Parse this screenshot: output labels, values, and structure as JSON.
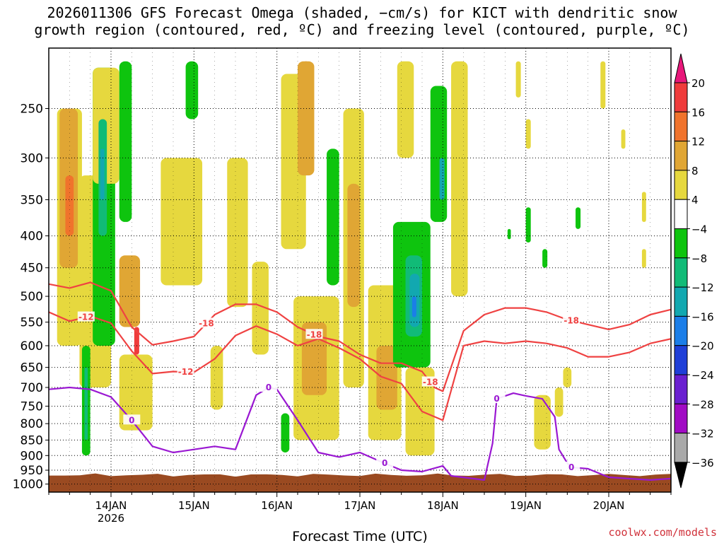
{
  "chart_data": {
    "type": "heatmap",
    "title_line1": "2026011306 GFS Forecast Omega (shaded, −cm/s) for KICT with dendritic snow",
    "title_line2": "growth region (contoured, red, ºC) and freezing level (contoured, purple, ºC)",
    "xlabel": "Forecast Time (UTC)",
    "ylabel": "",
    "x_ticks": [
      {
        "label": "14JAN",
        "sub": "2026",
        "day": 14
      },
      {
        "label": "15JAN",
        "sub": "",
        "day": 15
      },
      {
        "label": "16JAN",
        "sub": "",
        "day": 16
      },
      {
        "label": "17JAN",
        "sub": "",
        "day": 17
      },
      {
        "label": "18JAN",
        "sub": "",
        "day": 18
      },
      {
        "label": "19JAN",
        "sub": "",
        "day": 19
      },
      {
        "label": "20JAN",
        "sub": "",
        "day": 20
      }
    ],
    "xlim_days": [
      13.25,
      20.75
    ],
    "y_ticks": [
      250,
      300,
      350,
      400,
      450,
      500,
      550,
      600,
      650,
      700,
      750,
      800,
      850,
      900,
      950,
      1000
    ],
    "ylim_hpa": [
      200,
      1030
    ],
    "y_scale": "log",
    "grid": true,
    "colorbar": {
      "labels": [
        "20",
        "16",
        "12",
        "8",
        "4",
        "−4",
        "−8",
        "−12",
        "−16",
        "−20",
        "−24",
        "−28",
        "−32",
        "−36"
      ],
      "colors": [
        "#e8177a",
        "#ef3b3b",
        "#f0732c",
        "#e0a634",
        "#e6d83e",
        "#ffffff",
        "#0ec40e",
        "#11bb77",
        "#12a8b0",
        "#1b7ee8",
        "#1f3fd8",
        "#6a1fd0",
        "#a10bc4",
        "#a9a9a9",
        "#000000"
      ]
    },
    "contour_colors": {
      "dgz": "#ef4242",
      "freezing": "#9a18d2",
      "ground": "#9a4a21"
    },
    "contours": [
      {
        "name": "-12",
        "color": "dgz",
        "label_at": [
          13.7,
          14.9
        ],
        "pts": [
          [
            13.25,
            530
          ],
          [
            13.5,
            548
          ],
          [
            13.75,
            538
          ],
          [
            14.0,
            552
          ],
          [
            14.25,
            612
          ],
          [
            14.5,
            665
          ],
          [
            14.75,
            660
          ],
          [
            15.0,
            662
          ],
          [
            15.25,
            630
          ],
          [
            15.5,
            578
          ],
          [
            15.75,
            558
          ],
          [
            16.0,
            575
          ],
          [
            16.25,
            600
          ],
          [
            16.5,
            585
          ],
          [
            16.75,
            605
          ],
          [
            17.0,
            630
          ],
          [
            17.25,
            672
          ],
          [
            17.5,
            690
          ],
          [
            17.75,
            765
          ],
          [
            18.0,
            790
          ],
          [
            18.25,
            600
          ],
          [
            18.5,
            590
          ],
          [
            18.75,
            595
          ],
          [
            19.0,
            590
          ],
          [
            19.25,
            595
          ],
          [
            19.5,
            605
          ],
          [
            19.75,
            625
          ],
          [
            20.0,
            625
          ],
          [
            20.25,
            615
          ],
          [
            20.5,
            595
          ],
          [
            20.75,
            585
          ]
        ]
      },
      {
        "name": "-18",
        "color": "dgz",
        "label_at": [
          15.15,
          16.45,
          17.85,
          19.55
        ],
        "pts": [
          [
            13.25,
            478
          ],
          [
            13.5,
            485
          ],
          [
            13.75,
            475
          ],
          [
            14.0,
            490
          ],
          [
            14.25,
            560
          ],
          [
            14.5,
            598
          ],
          [
            14.75,
            590
          ],
          [
            15.0,
            580
          ],
          [
            15.25,
            535
          ],
          [
            15.5,
            515
          ],
          [
            15.75,
            515
          ],
          [
            16.0,
            530
          ],
          [
            16.25,
            560
          ],
          [
            16.5,
            580
          ],
          [
            16.75,
            590
          ],
          [
            17.0,
            620
          ],
          [
            17.25,
            640
          ],
          [
            17.5,
            640
          ],
          [
            17.75,
            660
          ],
          [
            17.9,
            700
          ],
          [
            18.0,
            710
          ],
          [
            18.25,
            568
          ],
          [
            18.5,
            535
          ],
          [
            18.75,
            522
          ],
          [
            19.0,
            522
          ],
          [
            19.25,
            530
          ],
          [
            19.5,
            545
          ],
          [
            19.75,
            555
          ],
          [
            20.0,
            565
          ],
          [
            20.25,
            555
          ],
          [
            20.5,
            535
          ],
          [
            20.75,
            525
          ]
        ]
      },
      {
        "name": "0",
        "color": "freezing",
        "label_at": [
          14.25,
          15.9,
          17.3,
          18.65,
          19.55
        ],
        "pts": [
          [
            13.25,
            705
          ],
          [
            13.5,
            700
          ],
          [
            13.75,
            705
          ],
          [
            14.0,
            725
          ],
          [
            14.25,
            790
          ],
          [
            14.5,
            870
          ],
          [
            14.75,
            890
          ],
          [
            15.0,
            880
          ],
          [
            15.25,
            870
          ],
          [
            15.5,
            880
          ],
          [
            15.75,
            720
          ],
          [
            15.9,
            700
          ],
          [
            16.0,
            705
          ],
          [
            16.25,
            790
          ],
          [
            16.5,
            890
          ],
          [
            16.75,
            905
          ],
          [
            17.0,
            890
          ],
          [
            17.25,
            920
          ],
          [
            17.5,
            950
          ],
          [
            17.75,
            955
          ],
          [
            18.0,
            935
          ],
          [
            18.1,
            970
          ],
          [
            18.5,
            985
          ],
          [
            18.6,
            860
          ],
          [
            18.65,
            730
          ],
          [
            18.85,
            715
          ],
          [
            19.0,
            722
          ],
          [
            19.2,
            730
          ],
          [
            19.35,
            780
          ],
          [
            19.4,
            880
          ],
          [
            19.5,
            925
          ],
          [
            19.55,
            940
          ],
          [
            19.75,
            945
          ],
          [
            20.0,
            975
          ],
          [
            20.5,
            985
          ],
          [
            20.75,
            980
          ]
        ]
      }
    ],
    "omega_regions": [
      {
        "v": 6,
        "x": [
          13.35,
          13.65
        ],
        "p": [
          250,
          600
        ]
      },
      {
        "v": 10,
        "x": [
          13.38,
          13.6
        ],
        "p": [
          250,
          450
        ]
      },
      {
        "v": 14,
        "x": [
          13.45,
          13.55
        ],
        "p": [
          320,
          400
        ]
      },
      {
        "v": 6,
        "x": [
          13.62,
          14.0
        ],
        "p": [
          320,
          700
        ]
      },
      {
        "v": -6,
        "x": [
          13.65,
          13.75
        ],
        "p": [
          600,
          900
        ]
      },
      {
        "v": -10,
        "x": [
          13.68,
          13.72
        ],
        "p": [
          650,
          850
        ]
      },
      {
        "v": -6,
        "x": [
          13.78,
          14.05
        ],
        "p": [
          215,
          600
        ]
      },
      {
        "v": 6,
        "x": [
          13.78,
          14.1
        ],
        "p": [
          215,
          330
        ]
      },
      {
        "v": -10,
        "x": [
          13.85,
          13.95
        ],
        "p": [
          260,
          400
        ]
      },
      {
        "v": -14,
        "x": [
          13.87,
          13.92
        ],
        "p": [
          290,
          350
        ]
      },
      {
        "v": -6,
        "x": [
          14.1,
          14.25
        ],
        "p": [
          210,
          380
        ]
      },
      {
        "v": 8,
        "x": [
          14.1,
          14.35
        ],
        "p": [
          430,
          560
        ]
      },
      {
        "v": 16,
        "x": [
          14.28,
          14.34
        ],
        "p": [
          560,
          620
        ]
      },
      {
        "v": 6,
        "x": [
          14.1,
          14.5
        ],
        "p": [
          620,
          820
        ]
      },
      {
        "v": -6,
        "x": [
          14.9,
          15.05
        ],
        "p": [
          210,
          260
        ]
      },
      {
        "v": 6,
        "x": [
          14.6,
          15.1
        ],
        "p": [
          300,
          480
        ]
      },
      {
        "v": 6,
        "x": [
          15.4,
          15.65
        ],
        "p": [
          300,
          520
        ]
      },
      {
        "v": 6,
        "x": [
          15.2,
          15.35
        ],
        "p": [
          600,
          760
        ]
      },
      {
        "v": 6,
        "x": [
          15.7,
          15.9
        ],
        "p": [
          440,
          620
        ]
      },
      {
        "v": -6,
        "x": [
          16.05,
          16.15
        ],
        "p": [
          770,
          890
        ]
      },
      {
        "v": 6,
        "x": [
          16.05,
          16.35
        ],
        "p": [
          220,
          420
        ]
      },
      {
        "v": 16,
        "x": [
          16.3,
          16.4
        ],
        "p": [
          210,
          260
        ]
      },
      {
        "v": 10,
        "x": [
          16.25,
          16.45
        ],
        "p": [
          210,
          320
        ]
      },
      {
        "v": 6,
        "x": [
          16.2,
          16.75
        ],
        "p": [
          500,
          850
        ]
      },
      {
        "v": 10,
        "x": [
          16.3,
          16.6
        ],
        "p": [
          550,
          720
        ]
      },
      {
        "v": -6,
        "x": [
          16.6,
          16.75
        ],
        "p": [
          290,
          480
        ]
      },
      {
        "v": 6,
        "x": [
          16.8,
          17.05
        ],
        "p": [
          250,
          700
        ]
      },
      {
        "v": 10,
        "x": [
          16.85,
          17.0
        ],
        "p": [
          330,
          520
        ]
      },
      {
        "v": 6,
        "x": [
          17.1,
          17.5
        ],
        "p": [
          480,
          850
        ]
      },
      {
        "v": 10,
        "x": [
          17.2,
          17.45
        ],
        "p": [
          600,
          760
        ]
      },
      {
        "v": 6,
        "x": [
          17.45,
          17.65
        ],
        "p": [
          210,
          300
        ]
      },
      {
        "v": -6,
        "x": [
          17.4,
          17.85
        ],
        "p": [
          380,
          650
        ]
      },
      {
        "v": -10,
        "x": [
          17.55,
          17.75
        ],
        "p": [
          430,
          580
        ]
      },
      {
        "v": -14,
        "x": [
          17.6,
          17.72
        ],
        "p": [
          460,
          560
        ]
      },
      {
        "v": -18,
        "x": [
          17.63,
          17.68
        ],
        "p": [
          500,
          540
        ]
      },
      {
        "v": -6,
        "x": [
          17.85,
          18.05
        ],
        "p": [
          230,
          380
        ]
      },
      {
        "v": -14,
        "x": [
          17.96,
          18.02
        ],
        "p": [
          300,
          350
        ]
      },
      {
        "v": 6,
        "x": [
          17.55,
          17.9
        ],
        "p": [
          650,
          900
        ]
      },
      {
        "v": 6,
        "x": [
          18.1,
          18.3
        ],
        "p": [
          210,
          500
        ]
      },
      {
        "v": -6,
        "x": [
          18.78,
          18.82
        ],
        "p": [
          390,
          405
        ]
      },
      {
        "v": 6,
        "x": [
          18.88,
          18.94
        ],
        "p": [
          210,
          240
        ]
      },
      {
        "v": -6,
        "x": [
          19.0,
          19.06
        ],
        "p": [
          360,
          410
        ]
      },
      {
        "v": 6,
        "x": [
          19.0,
          19.06
        ],
        "p": [
          260,
          290
        ]
      },
      {
        "v": 6,
        "x": [
          19.1,
          19.3
        ],
        "p": [
          720,
          880
        ]
      },
      {
        "v": 6,
        "x": [
          19.35,
          19.45
        ],
        "p": [
          700,
          780
        ]
      },
      {
        "v": -6,
        "x": [
          19.2,
          19.26
        ],
        "p": [
          420,
          450
        ]
      },
      {
        "v": -6,
        "x": [
          19.6,
          19.66
        ],
        "p": [
          360,
          390
        ]
      },
      {
        "v": 6,
        "x": [
          19.45,
          19.55
        ],
        "p": [
          650,
          700
        ]
      },
      {
        "v": 6,
        "x": [
          19.9,
          19.96
        ],
        "p": [
          210,
          250
        ]
      },
      {
        "v": 6,
        "x": [
          20.15,
          20.2
        ],
        "p": [
          270,
          290
        ]
      },
      {
        "v": 6,
        "x": [
          20.4,
          20.45
        ],
        "p": [
          340,
          380
        ]
      },
      {
        "v": 6,
        "x": [
          20.4,
          20.45
        ],
        "p": [
          420,
          450
        ]
      }
    ]
  },
  "credit": "coolwx.com/models"
}
